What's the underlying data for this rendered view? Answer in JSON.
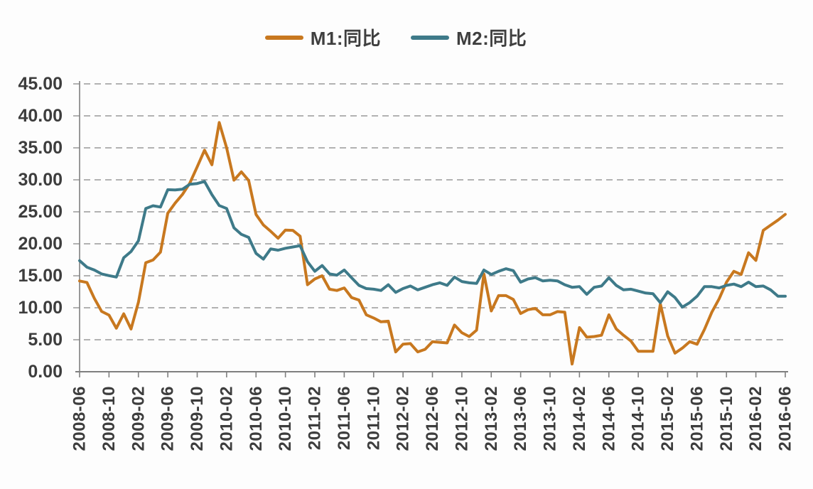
{
  "chart_data": {
    "type": "line",
    "title": "",
    "legend_position": "top-center",
    "grid": "dashed-horizontal",
    "ylim": [
      0,
      45
    ],
    "ytick_step": 5,
    "ytick_labels": [
      "0.00",
      "5.00",
      "10.00",
      "15.00",
      "20.00",
      "25.00",
      "30.00",
      "35.00",
      "40.00",
      "45.00"
    ],
    "xtick_every": 4,
    "xtick_labels": [
      "2008-06",
      "2008-10",
      "2009-02",
      "2009-06",
      "2009-10",
      "2010-02",
      "2010-06",
      "2010-10",
      "2011-02",
      "2011-06",
      "2011-10",
      "2012-02",
      "2012-06",
      "2012-10",
      "2013-02",
      "2013-06",
      "2013-10",
      "2014-02",
      "2014-06",
      "2014-10",
      "2015-02",
      "2015-06",
      "2015-10",
      "2016-02",
      "2016-06"
    ],
    "x": [
      "2008-06",
      "2008-07",
      "2008-08",
      "2008-09",
      "2008-10",
      "2008-11",
      "2008-12",
      "2009-01",
      "2009-02",
      "2009-03",
      "2009-04",
      "2009-05",
      "2009-06",
      "2009-07",
      "2009-08",
      "2009-09",
      "2009-10",
      "2009-11",
      "2009-12",
      "2010-01",
      "2010-02",
      "2010-03",
      "2010-04",
      "2010-05",
      "2010-06",
      "2010-07",
      "2010-08",
      "2010-09",
      "2010-10",
      "2010-11",
      "2010-12",
      "2011-01",
      "2011-02",
      "2011-03",
      "2011-04",
      "2011-05",
      "2011-06",
      "2011-07",
      "2011-08",
      "2011-09",
      "2011-10",
      "2011-11",
      "2011-12",
      "2012-01",
      "2012-02",
      "2012-03",
      "2012-04",
      "2012-05",
      "2012-06",
      "2012-07",
      "2012-08",
      "2012-09",
      "2012-10",
      "2012-11",
      "2012-12",
      "2013-01",
      "2013-02",
      "2013-03",
      "2013-04",
      "2013-05",
      "2013-06",
      "2013-07",
      "2013-08",
      "2013-09",
      "2013-10",
      "2013-11",
      "2013-12",
      "2014-01",
      "2014-02",
      "2014-03",
      "2014-04",
      "2014-05",
      "2014-06",
      "2014-07",
      "2014-08",
      "2014-09",
      "2014-10",
      "2014-11",
      "2014-12",
      "2015-01",
      "2015-02",
      "2015-03",
      "2015-04",
      "2015-05",
      "2015-06",
      "2015-07",
      "2015-08",
      "2015-09",
      "2015-10",
      "2015-11",
      "2015-12",
      "2016-01",
      "2016-02",
      "2016-03",
      "2016-04",
      "2016-05",
      "2016-06"
    ],
    "series": [
      {
        "name": "M1:同比",
        "color": "#C8781F",
        "values": [
          14.19,
          13.96,
          11.48,
          9.43,
          8.85,
          6.8,
          9.06,
          6.68,
          10.87,
          17.04,
          17.48,
          18.69,
          24.79,
          26.37,
          27.72,
          29.51,
          32.03,
          34.63,
          32.35,
          38.96,
          34.99,
          29.94,
          31.25,
          29.9,
          24.58,
          22.94,
          21.96,
          20.87,
          22.14,
          22.1,
          21.19,
          13.6,
          14.5,
          15.0,
          12.9,
          12.7,
          13.1,
          11.6,
          11.2,
          8.9,
          8.4,
          7.8,
          7.9,
          3.1,
          4.3,
          4.4,
          3.1,
          3.5,
          4.7,
          4.6,
          4.5,
          7.3,
          6.1,
          5.5,
          6.5,
          15.3,
          9.5,
          11.9,
          11.9,
          11.3,
          9.1,
          9.7,
          9.9,
          8.9,
          8.9,
          9.4,
          9.3,
          1.2,
          6.9,
          5.4,
          5.5,
          5.7,
          8.9,
          6.7,
          5.7,
          4.8,
          3.2,
          3.2,
          3.2,
          10.6,
          5.6,
          2.9,
          3.7,
          4.7,
          4.3,
          6.6,
          9.3,
          11.4,
          14.0,
          15.7,
          15.2,
          18.6,
          17.4,
          22.1,
          22.9,
          23.7,
          24.6
        ]
      },
      {
        "name": "M2:同比",
        "color": "#3E7A89",
        "values": [
          17.37,
          16.35,
          15.9,
          15.29,
          15.02,
          14.8,
          17.82,
          18.79,
          20.48,
          25.51,
          25.95,
          25.74,
          28.46,
          28.42,
          28.53,
          29.31,
          29.42,
          29.74,
          27.68,
          25.98,
          25.52,
          22.5,
          21.48,
          21.0,
          18.5,
          17.6,
          19.2,
          19.0,
          19.3,
          19.5,
          19.7,
          17.2,
          15.7,
          16.6,
          15.3,
          15.1,
          15.9,
          14.7,
          13.5,
          13.0,
          12.9,
          12.7,
          13.6,
          12.4,
          13.0,
          13.4,
          12.8,
          13.2,
          13.6,
          13.9,
          13.5,
          14.8,
          14.1,
          13.9,
          13.8,
          15.9,
          15.2,
          15.7,
          16.1,
          15.8,
          14.0,
          14.5,
          14.7,
          14.2,
          14.3,
          14.2,
          13.6,
          13.2,
          13.3,
          12.1,
          13.2,
          13.4,
          14.7,
          13.5,
          12.8,
          12.9,
          12.6,
          12.3,
          12.2,
          10.8,
          12.5,
          11.6,
          10.1,
          10.8,
          11.8,
          13.3,
          13.3,
          13.1,
          13.5,
          13.7,
          13.3,
          14.0,
          13.3,
          13.4,
          12.8,
          11.8,
          11.8
        ]
      }
    ]
  },
  "colors": {
    "axis": "#7f7f7f",
    "gridline": "#9a9a9a",
    "tick_text": "#3d3d3d"
  }
}
